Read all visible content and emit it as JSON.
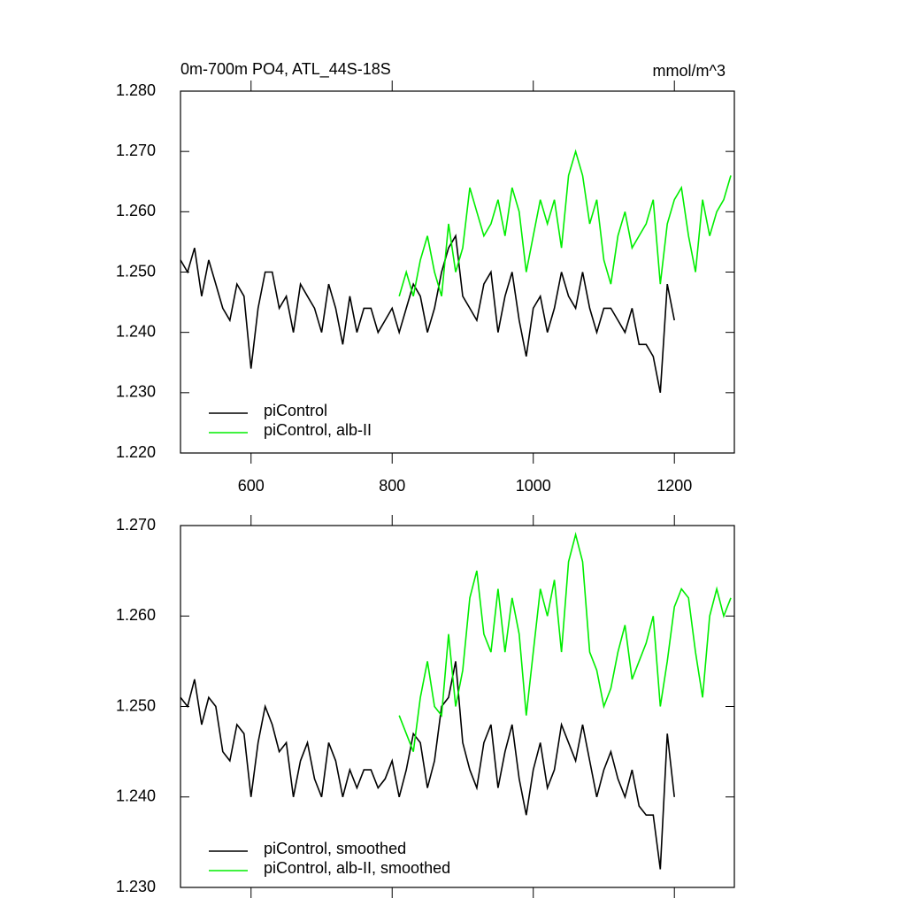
{
  "chart_data": [
    {
      "type": "line",
      "title": "0m-700m PO4, ATL_44S-18S",
      "units": "mmol/m^3",
      "x": [
        500,
        510,
        520,
        530,
        540,
        550,
        560,
        570,
        580,
        590,
        600,
        610,
        620,
        630,
        640,
        650,
        660,
        670,
        680,
        690,
        700,
        710,
        720,
        730,
        740,
        750,
        760,
        770,
        780,
        790,
        800,
        810,
        820,
        830,
        840,
        850,
        860,
        870,
        880,
        890,
        900,
        910,
        920,
        930,
        940,
        950,
        960,
        970,
        980,
        990,
        1000,
        1010,
        1020,
        1030,
        1040,
        1050,
        1060,
        1070,
        1080,
        1090,
        1100,
        1110,
        1120,
        1130,
        1140,
        1150,
        1160,
        1170,
        1180,
        1190,
        1200,
        1210,
        1220,
        1230,
        1240,
        1250,
        1260,
        1270,
        1280
      ],
      "series": [
        {
          "name": "piControl",
          "color": "#000000",
          "values": [
            1.252,
            1.25,
            1.254,
            1.246,
            1.252,
            1.248,
            1.244,
            1.242,
            1.248,
            1.246,
            1.234,
            1.244,
            1.25,
            1.25,
            1.244,
            1.246,
            1.24,
            1.248,
            1.246,
            1.244,
            1.24,
            1.248,
            1.244,
            1.238,
            1.246,
            1.24,
            1.244,
            1.244,
            1.24,
            1.242,
            1.244,
            1.24,
            1.244,
            1.248,
            1.246,
            1.24,
            1.244,
            1.25,
            1.254,
            1.256,
            1.246,
            1.244,
            1.242,
            1.248,
            1.25,
            1.24,
            1.246,
            1.25,
            1.242,
            1.236,
            1.244,
            1.246,
            1.24,
            1.244,
            1.25,
            1.246,
            1.244,
            1.25,
            1.244,
            1.24,
            1.244,
            1.244,
            1.242,
            1.24,
            1.244,
            1.238,
            1.238,
            1.236,
            1.23,
            1.248,
            1.242,
            null,
            null,
            null,
            null,
            null,
            null,
            null,
            null
          ]
        },
        {
          "name": "piControl, alb-II",
          "color": "#00ee00",
          "values": [
            null,
            null,
            null,
            null,
            null,
            null,
            null,
            null,
            null,
            null,
            null,
            null,
            null,
            null,
            null,
            null,
            null,
            null,
            null,
            null,
            null,
            null,
            null,
            null,
            null,
            null,
            null,
            null,
            null,
            null,
            null,
            1.246,
            1.25,
            1.246,
            1.252,
            1.256,
            1.25,
            1.246,
            1.258,
            1.25,
            1.254,
            1.264,
            1.26,
            1.256,
            1.258,
            1.262,
            1.256,
            1.264,
            1.26,
            1.25,
            1.256,
            1.262,
            1.258,
            1.262,
            1.254,
            1.266,
            1.27,
            1.266,
            1.258,
            1.262,
            1.252,
            1.248,
            1.256,
            1.26,
            1.254,
            1.256,
            1.258,
            1.262,
            1.248,
            1.258,
            1.262,
            1.264,
            1.256,
            1.25,
            1.262,
            1.256,
            1.26,
            1.262,
            1.266
          ]
        }
      ],
      "xlim": [
        500,
        1285
      ],
      "xticks": [
        600,
        800,
        1000,
        1200
      ],
      "ylim": [
        1.22,
        1.28
      ],
      "yticks": [
        {
          "value": 1.22,
          "label": "1.220"
        },
        {
          "value": 1.23,
          "label": "1.230"
        },
        {
          "value": 1.24,
          "label": "1.240"
        },
        {
          "value": 1.25,
          "label": "1.250"
        },
        {
          "value": 1.26,
          "label": "1.260"
        },
        {
          "value": 1.27,
          "label": "1.270"
        },
        {
          "value": 1.28,
          "label": "1.280"
        }
      ],
      "legend": "lower left"
    },
    {
      "type": "line",
      "x": [
        500,
        510,
        520,
        530,
        540,
        550,
        560,
        570,
        580,
        590,
        600,
        610,
        620,
        630,
        640,
        650,
        660,
        670,
        680,
        690,
        700,
        710,
        720,
        730,
        740,
        750,
        760,
        770,
        780,
        790,
        800,
        810,
        820,
        830,
        840,
        850,
        860,
        870,
        880,
        890,
        900,
        910,
        920,
        930,
        940,
        950,
        960,
        970,
        980,
        990,
        1000,
        1010,
        1020,
        1030,
        1040,
        1050,
        1060,
        1070,
        1080,
        1090,
        1100,
        1110,
        1120,
        1130,
        1140,
        1150,
        1160,
        1170,
        1180,
        1190,
        1200,
        1210,
        1220,
        1230,
        1240,
        1250,
        1260,
        1270,
        1280
      ],
      "series": [
        {
          "name": "piControl, smoothed",
          "color": "#000000",
          "values": [
            1.251,
            1.25,
            1.253,
            1.248,
            1.251,
            1.25,
            1.245,
            1.244,
            1.248,
            1.247,
            1.24,
            1.246,
            1.25,
            1.248,
            1.245,
            1.246,
            1.24,
            1.244,
            1.246,
            1.242,
            1.24,
            1.246,
            1.244,
            1.24,
            1.243,
            1.241,
            1.243,
            1.243,
            1.241,
            1.242,
            1.244,
            1.24,
            1.243,
            1.247,
            1.246,
            1.241,
            1.244,
            1.25,
            1.251,
            1.255,
            1.246,
            1.243,
            1.241,
            1.246,
            1.248,
            1.241,
            1.245,
            1.248,
            1.242,
            1.238,
            1.243,
            1.246,
            1.241,
            1.243,
            1.248,
            1.246,
            1.244,
            1.248,
            1.244,
            1.24,
            1.243,
            1.245,
            1.242,
            1.24,
            1.243,
            1.239,
            1.238,
            1.238,
            1.232,
            1.247,
            1.24,
            null,
            null,
            null,
            null,
            null,
            null,
            null,
            null
          ]
        },
        {
          "name": "piControl, alb-II, smoothed",
          "color": "#00ee00",
          "values": [
            null,
            null,
            null,
            null,
            null,
            null,
            null,
            null,
            null,
            null,
            null,
            null,
            null,
            null,
            null,
            null,
            null,
            null,
            null,
            null,
            null,
            null,
            null,
            null,
            null,
            null,
            null,
            null,
            null,
            null,
            null,
            1.249,
            1.247,
            1.245,
            1.251,
            1.255,
            1.25,
            1.249,
            1.258,
            1.25,
            1.254,
            1.262,
            1.265,
            1.258,
            1.256,
            1.263,
            1.256,
            1.262,
            1.258,
            1.249,
            1.256,
            1.263,
            1.26,
            1.264,
            1.256,
            1.266,
            1.269,
            1.266,
            1.256,
            1.254,
            1.25,
            1.252,
            1.256,
            1.259,
            1.253,
            1.255,
            1.257,
            1.26,
            1.25,
            1.255,
            1.261,
            1.263,
            1.262,
            1.256,
            1.251,
            1.26,
            1.263,
            1.26,
            1.262
          ]
        }
      ],
      "xlim": [
        500,
        1285
      ],
      "xticks": [
        600,
        800,
        1000,
        1200
      ],
      "ylim": [
        1.23,
        1.27
      ],
      "yticks": [
        {
          "value": 1.23,
          "label": "1.230"
        },
        {
          "value": 1.24,
          "label": "1.240"
        },
        {
          "value": 1.25,
          "label": "1.250"
        },
        {
          "value": 1.26,
          "label": "1.260"
        },
        {
          "value": 1.27,
          "label": "1.270"
        }
      ],
      "legend": "lower left"
    }
  ]
}
